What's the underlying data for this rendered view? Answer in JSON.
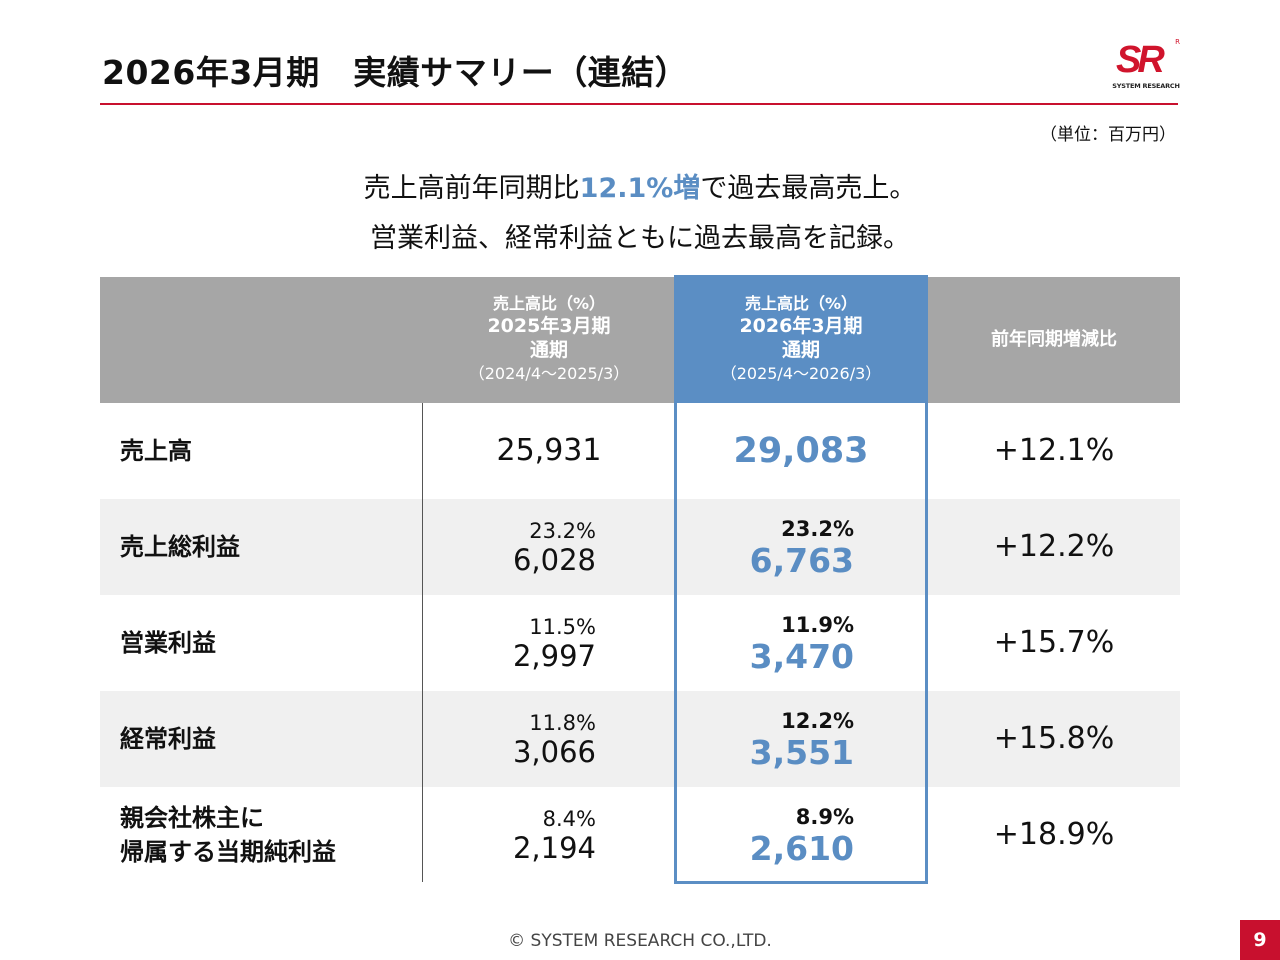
{
  "title": "2026年3月期　実績サマリー（連結）",
  "logo": {
    "mark": "SR",
    "reg": "R",
    "text": "SYSTEM RESEARCH",
    "color": "#d0142c"
  },
  "unit": "（単位：百万円）",
  "headline": {
    "line1_pre": "売上高前年同期比",
    "line1_highlight": "12.1%増",
    "line1_post": "で過去最高売上。",
    "line2": "営業利益、経常利益ともに過去最高を記録。",
    "highlight_color": "#5a8dc3"
  },
  "table": {
    "header": {
      "prev": {
        "ratio_label": "売上高比（%）",
        "fy": "2025年3月期",
        "kind": "通期",
        "period": "（2024/4～2025/3）"
      },
      "cur": {
        "ratio_label": "売上高比（%）",
        "fy": "2026年3月期",
        "kind": "通期",
        "period": "（2025/4～2026/3）"
      },
      "change": "前年同期増減比"
    },
    "rows": [
      {
        "label_l1": "売上高",
        "label_l2": "",
        "prev_pct": "",
        "prev_val": "25,931",
        "cur_pct": "",
        "cur_val": "29,083",
        "change": "+12.1%"
      },
      {
        "label_l1": "売上総利益",
        "label_l2": "",
        "prev_pct": "23.2%",
        "prev_val": "6,028",
        "cur_pct": "23.2%",
        "cur_val": "6,763",
        "change": "+12.2%"
      },
      {
        "label_l1": "営業利益",
        "label_l2": "",
        "prev_pct": "11.5%",
        "prev_val": "2,997",
        "cur_pct": "11.9%",
        "cur_val": "3,470",
        "change": "+15.7%"
      },
      {
        "label_l1": "経常利益",
        "label_l2": "",
        "prev_pct": "11.8%",
        "prev_val": "3,066",
        "cur_pct": "12.2%",
        "cur_val": "3,551",
        "change": "+15.8%"
      },
      {
        "label_l1": "親会社株主に",
        "label_l2": "帰属する当期純利益",
        "prev_pct": "8.4%",
        "prev_val": "2,194",
        "cur_pct": "8.9%",
        "cur_val": "2,610",
        "change": "+18.9%"
      }
    ],
    "header_bg": "#a6a6a6",
    "current_col_color": "#5b8ec4"
  },
  "footer": "© SYSTEM RESEARCH CO.,LTD.",
  "page_number": "9",
  "accent_color": "#c8102e"
}
